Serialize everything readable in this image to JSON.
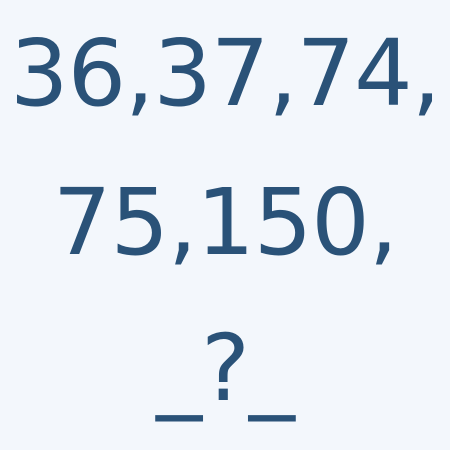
{
  "puzzle": {
    "line1": "36,37,74,",
    "line2": "75,150,",
    "line3": "_?_"
  },
  "colors": {
    "background": "#f3f7fc",
    "text": "#2a5278"
  }
}
